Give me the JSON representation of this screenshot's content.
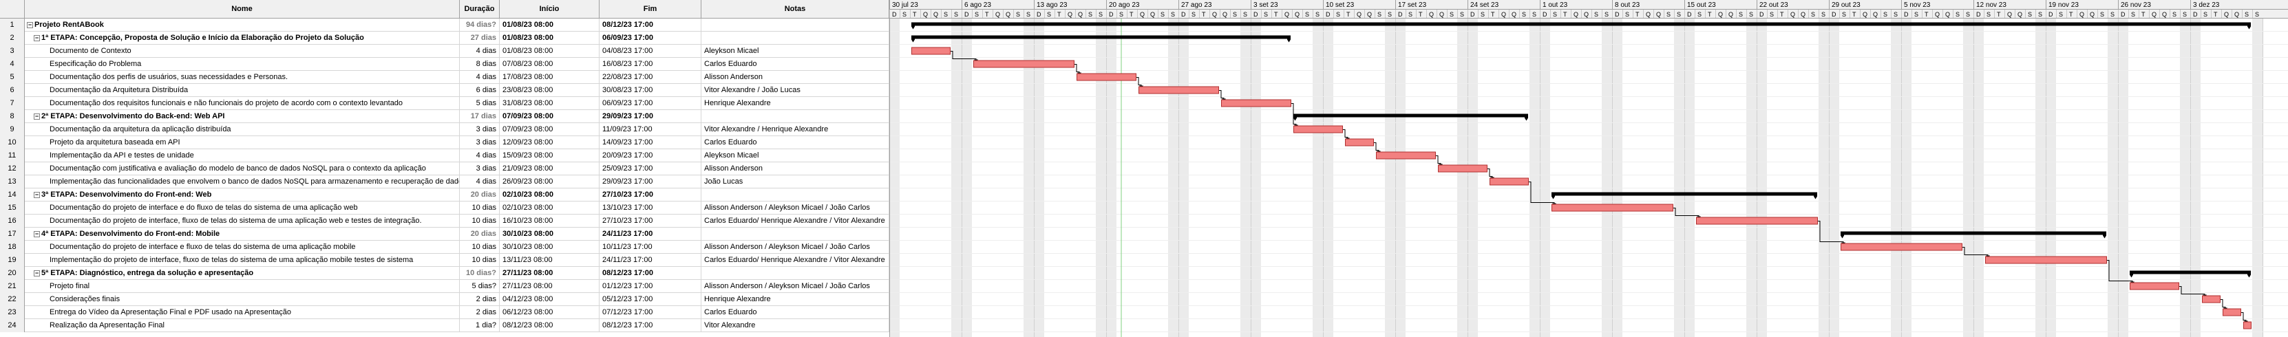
{
  "columns": {
    "nome": "Nome",
    "duracao": "Duração",
    "inicio": "Início",
    "fim": "Fim",
    "notas": "Notas"
  },
  "rows": [
    {
      "n": "1",
      "name": "Projeto RentABook",
      "dur": "94 dias?",
      "start": "01/08/23 08:00",
      "end": "08/12/23 17:00",
      "notes": "",
      "level": 0,
      "summary": true,
      "toggle": "−"
    },
    {
      "n": "2",
      "name": "1ª ETAPA: Concepção, Proposta de Solução e Início da Elaboração do Projeto da Solução",
      "dur": "27 dias",
      "start": "01/08/23 08:00",
      "end": "06/09/23 17:00",
      "notes": "",
      "level": 1,
      "summary": true,
      "toggle": "−"
    },
    {
      "n": "3",
      "name": "Documento de Contexto",
      "dur": "4 dias",
      "start": "01/08/23 08:00",
      "end": "04/08/23 17:00",
      "notes": "Aleykson Micael",
      "level": 2,
      "summary": false
    },
    {
      "n": "4",
      "name": "Especificação do Problema",
      "dur": "8 dias",
      "start": "07/08/23 08:00",
      "end": "16/08/23 17:00",
      "notes": "Carlos Eduardo",
      "level": 2,
      "summary": false
    },
    {
      "n": "5",
      "name": "Documentação dos perfis de usuários, suas necessidades e Personas.",
      "dur": "4 dias",
      "start": "17/08/23 08:00",
      "end": "22/08/23 17:00",
      "notes": "Alisson Anderson",
      "level": 2,
      "summary": false
    },
    {
      "n": "6",
      "name": "Documentação da Arquitetura Distribuída",
      "dur": "6 dias",
      "start": "23/08/23 08:00",
      "end": "30/08/23 17:00",
      "notes": "Vitor Alexandre / João Lucas",
      "level": 2,
      "summary": false
    },
    {
      "n": "7",
      "name": "Documentação dos requisitos funcionais e não funcionais do projeto de acordo com o contexto levantado",
      "dur": "5 dias",
      "start": "31/08/23 08:00",
      "end": "06/09/23 17:00",
      "notes": "Henrique Alexandre",
      "level": 2,
      "summary": false
    },
    {
      "n": "8",
      "name": "2ª ETAPA: Desenvolvimento do Back-end: Web API",
      "dur": "17 dias",
      "start": "07/09/23 08:00",
      "end": "29/09/23 17:00",
      "notes": "",
      "level": 1,
      "summary": true,
      "toggle": "−"
    },
    {
      "n": "9",
      "name": "Documentação da arquitetura da aplicação distribuída",
      "dur": "3 dias",
      "start": "07/09/23 08:00",
      "end": "11/09/23 17:00",
      "notes": "Vitor Alexandre / Henrique Alexandre",
      "level": 2,
      "summary": false
    },
    {
      "n": "10",
      "name": "Projeto da arquitetura baseada em API",
      "dur": "3 dias",
      "start": "12/09/23 08:00",
      "end": "14/09/23 17:00",
      "notes": "Carlos Eduardo",
      "level": 2,
      "summary": false
    },
    {
      "n": "11",
      "name": "Implementação da API e testes de unidade",
      "dur": "4 dias",
      "start": "15/09/23 08:00",
      "end": "20/09/23 17:00",
      "notes": "Aleykson Micael",
      "level": 2,
      "summary": false
    },
    {
      "n": "12",
      "name": "Documentação com justificativa e avaliação do modelo de banco de dados NoSQL para o contexto da aplicação",
      "dur": "3 dias",
      "start": "21/09/23 08:00",
      "end": "25/09/23 17:00",
      "notes": "Alisson Anderson",
      "level": 2,
      "summary": false
    },
    {
      "n": "13",
      "name": "Implementação das funcionalidades que envolvem o banco de dados NoSQL para armazenamento e recuperação de dados",
      "dur": "4 dias",
      "start": "26/09/23 08:00",
      "end": "29/09/23 17:00",
      "notes": "João Lucas",
      "level": 2,
      "summary": false
    },
    {
      "n": "14",
      "name": "3ª ETAPA: Desenvolvimento do Front-end: Web",
      "dur": "20 dias",
      "start": "02/10/23 08:00",
      "end": "27/10/23 17:00",
      "notes": "",
      "level": 1,
      "summary": true,
      "toggle": "−"
    },
    {
      "n": "15",
      "name": "Documentação do projeto de interface e do fluxo de telas do sistema de uma aplicação web",
      "dur": "10 dias",
      "start": "02/10/23 08:00",
      "end": "13/10/23 17:00",
      "notes": "Alisson Anderson / Aleykson Micael / João Carlos",
      "level": 2,
      "summary": false
    },
    {
      "n": "16",
      "name": "Documentação do projeto de interface, fluxo de telas do sistema de uma aplicação web e testes de integração.",
      "dur": "10 dias",
      "start": "16/10/23 08:00",
      "end": "27/10/23 17:00",
      "notes": "Carlos Eduardo/ Henrique Alexandre / Vitor Alexandre",
      "level": 2,
      "summary": false
    },
    {
      "n": "17",
      "name": "4ª ETAPA: Desenvolvimento do Front-end: Mobile",
      "dur": "20 dias",
      "start": "30/10/23 08:00",
      "end": "24/11/23 17:00",
      "notes": "",
      "level": 1,
      "summary": true,
      "toggle": "−"
    },
    {
      "n": "18",
      "name": "Documentação do projeto de interface e fluxo de telas do sistema de uma aplicação mobile",
      "dur": "10 dias",
      "start": "30/10/23 08:00",
      "end": "10/11/23 17:00",
      "notes": "Alisson Anderson / Aleykson Micael / João Carlos",
      "level": 2,
      "summary": false
    },
    {
      "n": "19",
      "name": "Implementação do projeto de interface, fluxo de telas do sistema de uma aplicação mobile testes de sistema",
      "dur": "10 dias",
      "start": "13/11/23 08:00",
      "end": "24/11/23 17:00",
      "notes": "Carlos Eduardo/ Henrique Alexandre / Vitor Alexandre",
      "level": 2,
      "summary": false
    },
    {
      "n": "20",
      "name": "5ª ETAPA: Diagnóstico, entrega da solução e apresentação",
      "dur": "10 dias?",
      "start": "27/11/23 08:00",
      "end": "08/12/23 17:00",
      "notes": "",
      "level": 1,
      "summary": true,
      "toggle": "−"
    },
    {
      "n": "21",
      "name": "Projeto final",
      "dur": "5 dias?",
      "start": "27/11/23 08:00",
      "end": "01/12/23 17:00",
      "notes": "Alisson Anderson / Aleykson Micael / João Carlos",
      "level": 2,
      "summary": false
    },
    {
      "n": "22",
      "name": "Considerações finais",
      "dur": "2 dias",
      "start": "04/12/23 08:00",
      "end": "05/12/23 17:00",
      "notes": "Henrique Alexandre",
      "level": 2,
      "summary": false
    },
    {
      "n": "23",
      "name": "Entrega do Vídeo da Apresentação Final e PDF usado na Apresentação",
      "dur": "2 dias",
      "start": "06/12/23 08:00",
      "end": "07/12/23 17:00",
      "notes": "Carlos Eduardo",
      "level": 2,
      "summary": false
    },
    {
      "n": "24",
      "name": "Realização da Apresentação Final",
      "dur": "1 dia?",
      "start": "08/12/23 08:00",
      "end": "08/12/23 17:00",
      "notes": "Vitor Alexandre",
      "level": 2,
      "summary": false
    }
  ],
  "timeline": {
    "weeks": [
      "30 jul 23",
      "6 ago 23",
      "13 ago 23",
      "20 ago 23",
      "27 ago 23",
      "3 set 23",
      "10 set 23",
      "17 set 23",
      "24 set 23",
      "1 out 23",
      "8 out 23",
      "15 out 23",
      "22 out 23",
      "29 out 23",
      "5 nov 23",
      "12 nov 23",
      "19 nov 23",
      "26 nov 23",
      "3 dez 23"
    ],
    "day_letters": [
      "D",
      "S",
      "T",
      "Q",
      "Q",
      "S",
      "S"
    ],
    "first_day": "2023-07-30",
    "today": "2023-08-21"
  },
  "colors": {
    "task_bar": "#f28080",
    "task_border": "#b03030",
    "summary_bar": "#000000",
    "weekend": "#ebebeb",
    "today_line": "#7fd17f"
  }
}
